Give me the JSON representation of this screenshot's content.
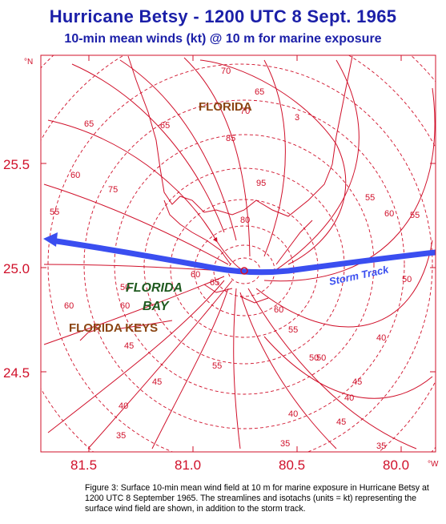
{
  "title": "Hurricane Betsy - 1200 UTC 8 Sept. 1965",
  "subtitle": "10-min mean winds (kt) @ 10 m for marine exposure",
  "axes": {
    "lat_unit": "°N",
    "lon_unit": "°W",
    "lat_ticks": [
      "25.5",
      "25.0",
      "24.5"
    ],
    "lon_ticks": [
      "81.5",
      "81.0",
      "80.5",
      "80.0"
    ]
  },
  "place_labels": {
    "florida": "FLORIDA",
    "florida_bay_1": "FLORIDA",
    "florida_bay_2": "BAY",
    "florida_keys": "FLORIDA KEYS"
  },
  "storm_track_label": "Storm Track",
  "isotach_labels": [
    "70",
    "65",
    "60",
    "55",
    "50",
    "45",
    "40",
    "35",
    "85",
    "95",
    "80",
    "75",
    "65",
    "60",
    "55",
    "50",
    "45",
    "40",
    "35",
    "60",
    "55",
    "50",
    "45",
    "40",
    "3",
    "70",
    "65",
    "60",
    "55",
    "50",
    "45",
    "40",
    "35",
    "55",
    "60",
    "65",
    "60"
  ],
  "caption": "Figure 3:  Surface 10-min mean wind field at 10 m for marine exposure in Hurricane Betsy at 1200 UTC 8 September 1965. The streamlines and isotachs (units = kt) representing the surface wind field are shown, in addition to the storm track.",
  "colors": {
    "title": "#1b1fa8",
    "field": "#d0102a",
    "track": "#3a4ef0",
    "florida_label": "#8b4513",
    "bay_label": "#1f5a1f"
  }
}
